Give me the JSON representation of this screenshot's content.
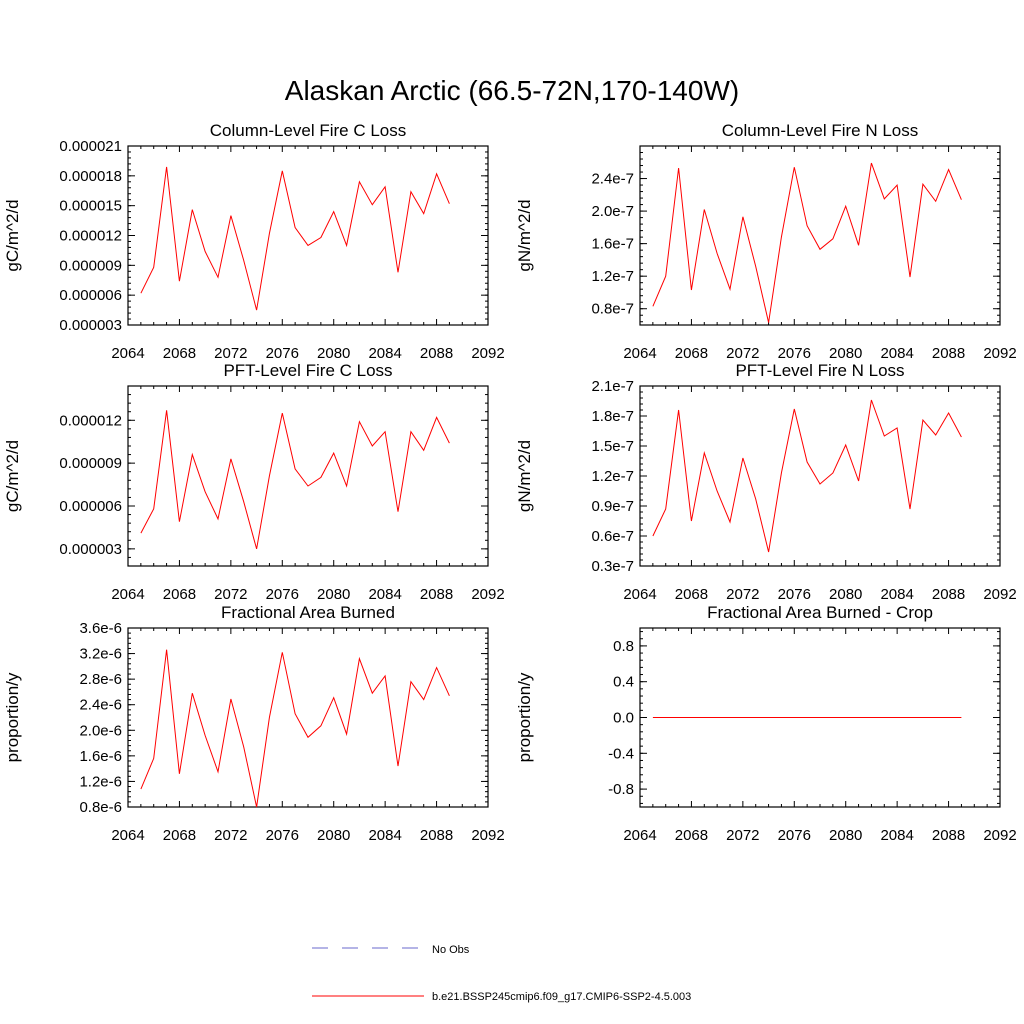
{
  "figure": {
    "title": "Alaskan Arctic (66.5-72N,170-140W)"
  },
  "chart_data": [
    {
      "type": "line",
      "title": "Column-Level Fire C Loss",
      "ylabel": "gC/m^2/d",
      "xlim": [
        2064,
        2092
      ],
      "ylim": [
        3e-06,
        2.1e-05
      ],
      "xticks": [
        "2064",
        "2068",
        "2072",
        "2076",
        "2080",
        "2084",
        "2088",
        "2092"
      ],
      "yticks": [
        {
          "v": 3e-06,
          "label": "0.000003"
        },
        {
          "v": 6e-06,
          "label": "0.000006"
        },
        {
          "v": 9e-06,
          "label": "0.000009"
        },
        {
          "v": 1.2e-05,
          "label": "0.000012"
        },
        {
          "v": 1.5e-05,
          "label": "0.000015"
        },
        {
          "v": 1.8e-05,
          "label": "0.000018"
        },
        {
          "v": 2.1e-05,
          "label": "0.000021"
        }
      ],
      "series": [
        {
          "color": "#ff0000",
          "x": [
            2065,
            2066,
            2067,
            2068,
            2069,
            2070,
            2071,
            2072,
            2073,
            2074,
            2075,
            2076,
            2077,
            2078,
            2079,
            2080,
            2081,
            2082,
            2083,
            2084,
            2085,
            2086,
            2087,
            2088,
            2089
          ],
          "y": [
            6.2e-06,
            8.8e-06,
            1.89e-05,
            7.4e-06,
            1.46e-05,
            1.04e-05,
            7.8e-06,
            1.4e-05,
            9.5e-06,
            4.5e-06,
            1.22e-05,
            1.85e-05,
            1.28e-05,
            1.1e-05,
            1.18e-05,
            1.44e-05,
            1.1e-05,
            1.74e-05,
            1.51e-05,
            1.69e-05,
            8.3e-06,
            1.64e-05,
            1.42e-05,
            1.82e-05,
            1.52e-05
          ]
        }
      ]
    },
    {
      "type": "line",
      "title": "Column-Level Fire N Loss",
      "ylabel": "gN/m^2/d",
      "xlim": [
        2064,
        2092
      ],
      "ylim": [
        6e-08,
        2.8e-07
      ],
      "xticks": [
        "2064",
        "2068",
        "2072",
        "2076",
        "2080",
        "2084",
        "2088",
        "2092"
      ],
      "yticks": [
        {
          "v": 8e-08,
          "label": "0.8e-7"
        },
        {
          "v": 1.2e-07,
          "label": "1.2e-7"
        },
        {
          "v": 1.6e-07,
          "label": "1.6e-7"
        },
        {
          "v": 2e-07,
          "label": "2.0e-7"
        },
        {
          "v": 2.4e-07,
          "label": "2.4e-7"
        }
      ],
      "series": [
        {
          "color": "#ff0000",
          "x": [
            2065,
            2066,
            2067,
            2068,
            2069,
            2070,
            2071,
            2072,
            2073,
            2074,
            2075,
            2076,
            2077,
            2078,
            2079,
            2080,
            2081,
            2082,
            2083,
            2084,
            2085,
            2086,
            2087,
            2088,
            2089
          ],
          "y": [
            8.3e-08,
            1.2e-07,
            2.53e-07,
            1.03e-07,
            2.02e-07,
            1.48e-07,
            1.04e-07,
            1.93e-07,
            1.32e-07,
            6.3e-08,
            1.68e-07,
            2.54e-07,
            1.82e-07,
            1.53e-07,
            1.66e-07,
            2.06e-07,
            1.58e-07,
            2.59e-07,
            2.15e-07,
            2.32e-07,
            1.19e-07,
            2.33e-07,
            2.12e-07,
            2.51e-07,
            2.14e-07
          ]
        }
      ]
    },
    {
      "type": "line",
      "title": "PFT-Level Fire C Loss",
      "ylabel": "gC/m^2/d",
      "xlim": [
        2064,
        2092
      ],
      "ylim": [
        1.8e-06,
        1.44e-05
      ],
      "xticks": [
        "2064",
        "2068",
        "2072",
        "2076",
        "2080",
        "2084",
        "2088",
        "2092"
      ],
      "yticks": [
        {
          "v": 3e-06,
          "label": "0.000003"
        },
        {
          "v": 6e-06,
          "label": "0.000006"
        },
        {
          "v": 9e-06,
          "label": "0.000009"
        },
        {
          "v": 1.2e-05,
          "label": "0.000012"
        }
      ],
      "series": [
        {
          "color": "#ff0000",
          "x": [
            2065,
            2066,
            2067,
            2068,
            2069,
            2070,
            2071,
            2072,
            2073,
            2074,
            2075,
            2076,
            2077,
            2078,
            2079,
            2080,
            2081,
            2082,
            2083,
            2084,
            2085,
            2086,
            2087,
            2088,
            2089
          ],
          "y": [
            4.1e-06,
            5.8e-06,
            1.27e-05,
            4.9e-06,
            9.6e-06,
            7e-06,
            5.1e-06,
            9.3e-06,
            6.3e-06,
            3e-06,
            8.1e-06,
            1.25e-05,
            8.6e-06,
            7.4e-06,
            8e-06,
            9.7e-06,
            7.4e-06,
            1.19e-05,
            1.02e-05,
            1.12e-05,
            5.6e-06,
            1.12e-05,
            9.9e-06,
            1.22e-05,
            1.04e-05
          ]
        }
      ]
    },
    {
      "type": "line",
      "title": "PFT-Level Fire N Loss",
      "ylabel": "gN/m^2/d",
      "xlim": [
        2064,
        2092
      ],
      "ylim": [
        3e-08,
        2.1e-07
      ],
      "xticks": [
        "2064",
        "2068",
        "2072",
        "2076",
        "2080",
        "2084",
        "2088",
        "2092"
      ],
      "yticks": [
        {
          "v": 3e-08,
          "label": "0.3e-7"
        },
        {
          "v": 6e-08,
          "label": "0.6e-7"
        },
        {
          "v": 9e-08,
          "label": "0.9e-7"
        },
        {
          "v": 1.2e-07,
          "label": "1.2e-7"
        },
        {
          "v": 1.5e-07,
          "label": "1.5e-7"
        },
        {
          "v": 1.8e-07,
          "label": "1.8e-7"
        },
        {
          "v": 2.1e-07,
          "label": "2.1e-7"
        }
      ],
      "series": [
        {
          "color": "#ff0000",
          "x": [
            2065,
            2066,
            2067,
            2068,
            2069,
            2070,
            2071,
            2072,
            2073,
            2074,
            2075,
            2076,
            2077,
            2078,
            2079,
            2080,
            2081,
            2082,
            2083,
            2084,
            2085,
            2086,
            2087,
            2088,
            2089
          ],
          "y": [
            6e-08,
            8.7e-08,
            1.86e-07,
            7.5e-08,
            1.43e-07,
            1.05e-07,
            7.4e-08,
            1.38e-07,
            9.7e-08,
            4.4e-08,
            1.23e-07,
            1.87e-07,
            1.34e-07,
            1.12e-07,
            1.23e-07,
            1.51e-07,
            1.15e-07,
            1.96e-07,
            1.6e-07,
            1.68e-07,
            8.7e-08,
            1.76e-07,
            1.61e-07,
            1.83e-07,
            1.59e-07
          ]
        }
      ]
    },
    {
      "type": "line",
      "title": "Fractional Area Burned",
      "ylabel": "proportion/y",
      "xlim": [
        2064,
        2092
      ],
      "ylim": [
        8e-07,
        3.6e-06
      ],
      "xticks": [
        "2064",
        "2068",
        "2072",
        "2076",
        "2080",
        "2084",
        "2088",
        "2092"
      ],
      "yticks": [
        {
          "v": 8e-07,
          "label": "0.8e-6"
        },
        {
          "v": 1.2e-06,
          "label": "1.2e-6"
        },
        {
          "v": 1.6e-06,
          "label": "1.6e-6"
        },
        {
          "v": 2e-06,
          "label": "2.0e-6"
        },
        {
          "v": 2.4e-06,
          "label": "2.4e-6"
        },
        {
          "v": 2.8e-06,
          "label": "2.8e-6"
        },
        {
          "v": 3.2e-06,
          "label": "3.2e-6"
        },
        {
          "v": 3.6e-06,
          "label": "3.6e-6"
        }
      ],
      "series": [
        {
          "color": "#ff0000",
          "x": [
            2065,
            2066,
            2067,
            2068,
            2069,
            2070,
            2071,
            2072,
            2073,
            2074,
            2075,
            2076,
            2077,
            2078,
            2079,
            2080,
            2081,
            2082,
            2083,
            2084,
            2085,
            2086,
            2087,
            2088,
            2089
          ],
          "y": [
            1.08e-06,
            1.56e-06,
            3.26e-06,
            1.32e-06,
            2.58e-06,
            1.92e-06,
            1.35e-06,
            2.49e-06,
            1.74e-06,
            8e-07,
            2.2e-06,
            3.22e-06,
            2.26e-06,
            1.89e-06,
            2.07e-06,
            2.51e-06,
            1.94e-06,
            3.12e-06,
            2.58e-06,
            2.85e-06,
            1.44e-06,
            2.76e-06,
            2.48e-06,
            2.98e-06,
            2.54e-06
          ]
        }
      ]
    },
    {
      "type": "line",
      "title": "Fractional Area Burned - Crop",
      "ylabel": "proportion/y",
      "xlim": [
        2064,
        2092
      ],
      "ylim": [
        -1.0,
        1.0
      ],
      "xticks": [
        "2064",
        "2068",
        "2072",
        "2076",
        "2080",
        "2084",
        "2088",
        "2092"
      ],
      "yticks": [
        {
          "v": -0.8,
          "label": "-0.8"
        },
        {
          "v": -0.4,
          "label": "-0.4"
        },
        {
          "v": 0.0,
          "label": "0.0"
        },
        {
          "v": 0.4,
          "label": "0.4"
        },
        {
          "v": 0.8,
          "label": "0.8"
        }
      ],
      "series": [
        {
          "color": "#ff0000",
          "x": [
            2065,
            2066,
            2067,
            2068,
            2069,
            2070,
            2071,
            2072,
            2073,
            2074,
            2075,
            2076,
            2077,
            2078,
            2079,
            2080,
            2081,
            2082,
            2083,
            2084,
            2085,
            2086,
            2087,
            2088,
            2089
          ],
          "y": [
            0,
            0,
            0,
            0,
            0,
            0,
            0,
            0,
            0,
            0,
            0,
            0,
            0,
            0,
            0,
            0,
            0,
            0,
            0,
            0,
            0,
            0,
            0,
            0,
            0
          ]
        }
      ]
    }
  ],
  "legend": {
    "items": [
      {
        "label": "No Obs",
        "color": "#6a6acd",
        "style": "dashed"
      },
      {
        "label": "b.e21.BSSP245cmip6.f09_g17.CMIP6-SSP2-4.5.003",
        "color": "#ff0000",
        "style": "solid"
      }
    ]
  }
}
